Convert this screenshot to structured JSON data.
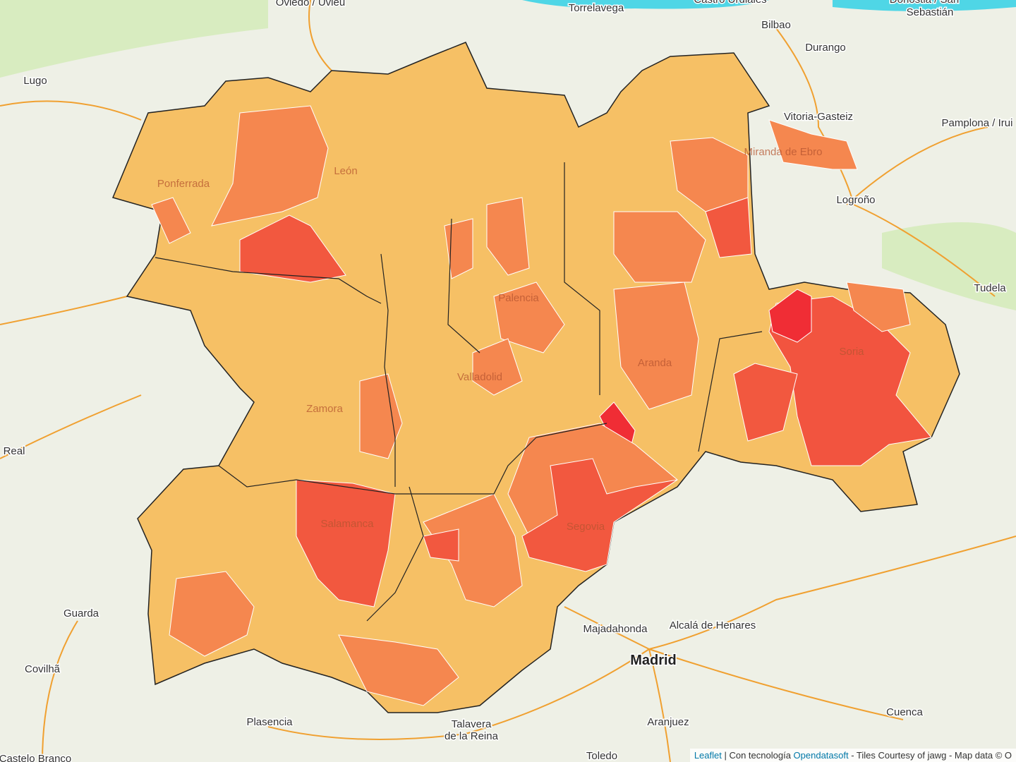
{
  "cities": [
    {
      "label": "Oviedo / Uvieu"
    },
    {
      "label": "Torrelavega"
    },
    {
      "label": "Castro Urdiales"
    },
    {
      "label": "Bilbao"
    },
    {
      "label": "Donostia / San"
    },
    {
      "label": "Sebastián"
    },
    {
      "label": "Durango"
    },
    {
      "label": "Lugo"
    },
    {
      "label": "Vitoria-Gasteiz"
    },
    {
      "label": "Pamplona / Irui"
    },
    {
      "label": "Logroño"
    },
    {
      "label": "Tudela"
    },
    {
      "label": "Soria"
    },
    {
      "label": "Guarda"
    },
    {
      "label": "Covilhã"
    },
    {
      "label": "Madrid"
    },
    {
      "label": "Majadahonda"
    },
    {
      "label": "Alcalá de Henares"
    },
    {
      "label": "Segovia"
    },
    {
      "label": "Salamanca"
    },
    {
      "label": "Valladolid"
    },
    {
      "label": "Palencia"
    },
    {
      "label": "Aranda"
    },
    {
      "label": "Zamora"
    },
    {
      "label": "León"
    },
    {
      "label": "Ponferrada"
    },
    {
      "label": "Plasencia"
    },
    {
      "label": "Talavera"
    },
    {
      "label": "de la Reina"
    },
    {
      "label": "Toledo"
    },
    {
      "label": "Aranjuez"
    },
    {
      "label": "Cuenca"
    },
    {
      "label": "Real"
    },
    {
      "label": "Miranda de Ebro"
    },
    {
      "label": "Castelo Branco"
    }
  ],
  "attribution": {
    "leaflet": "Leaflet",
    "sep": " | Con tecnología ",
    "opendatasoft": "Opendatasoft",
    "tiles": " - Tiles Courtesy of jawg",
    "mapdata": " - Map data © O"
  }
}
